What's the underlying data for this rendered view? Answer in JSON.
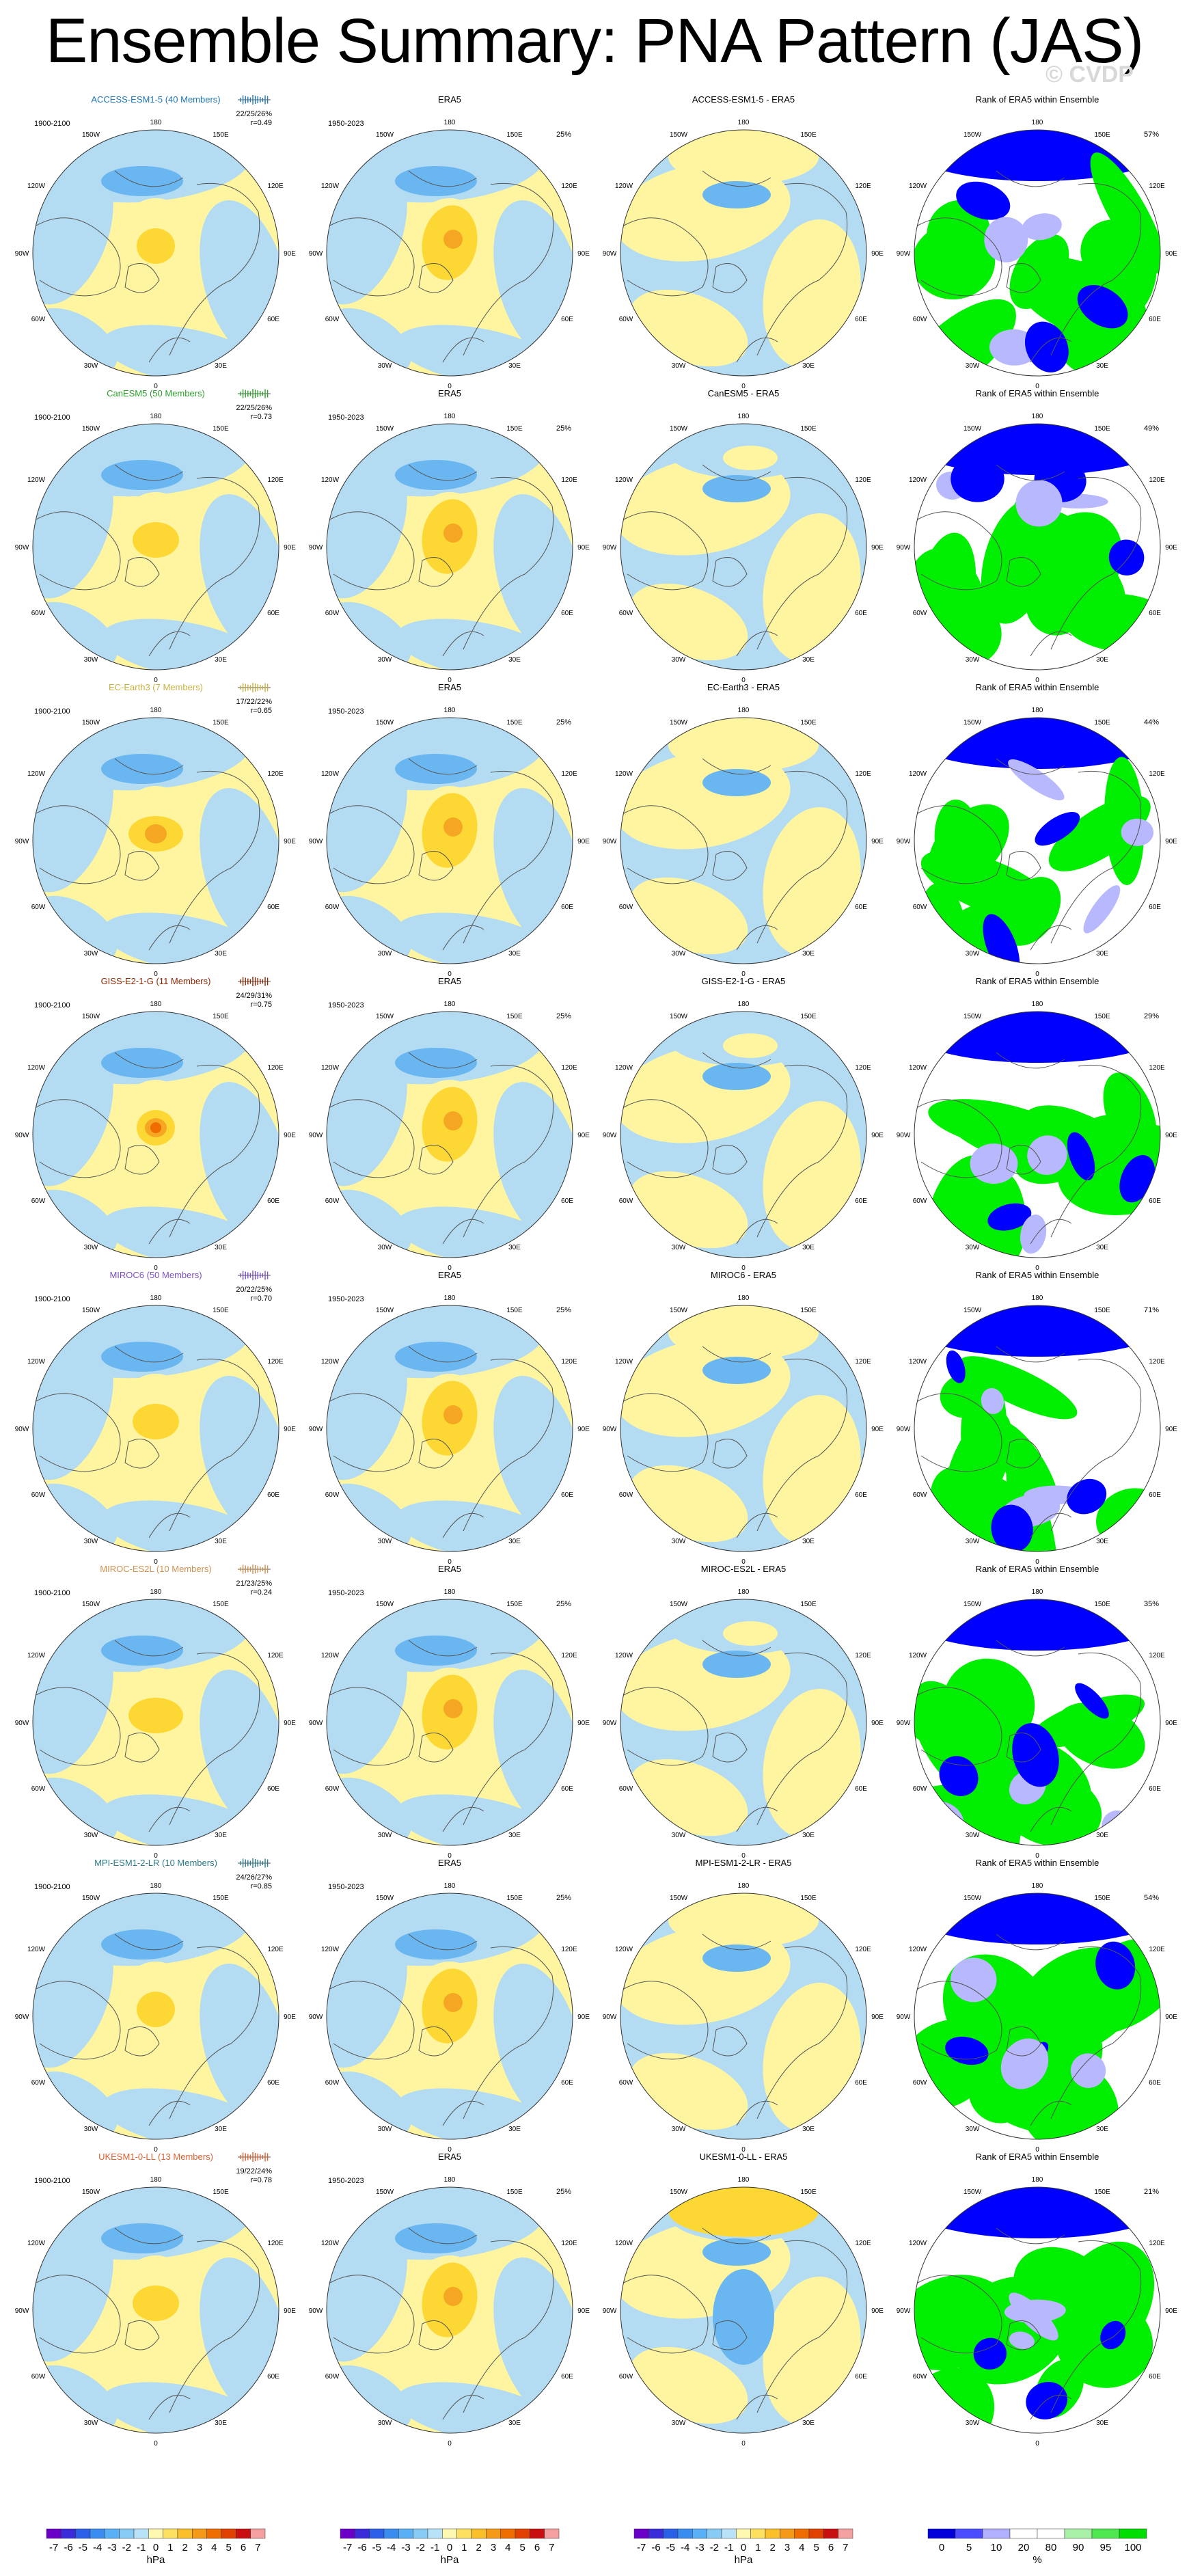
{
  "title": "Ensemble Summary: PNA Pattern (JAS)",
  "watermark": "© CVDP",
  "colors": {
    "pos1": "#fff5a0",
    "pos2": "#fdd835",
    "pos3": "#f5a623",
    "pos4": "#ef6c00",
    "neg1": "#b3dcf2",
    "neg2": "#6ab6f0",
    "neg3": "#2e7cd8",
    "rank_low": "#0000ff",
    "rank_mid_low": "#b8b8ff",
    "rank_mid": "#ffffff",
    "rank_high": "#00ee00"
  },
  "lon_labels": {
    "top": "180",
    "upper_left": "150W",
    "upper_right": "150E",
    "left_upper": "120W",
    "right_upper": "120E",
    "left": "90W",
    "right": "90E",
    "left_lower": "60W",
    "right_lower": "60E",
    "lower_left": "30W",
    "lower_right": "30E",
    "bottom": "0"
  },
  "rows": [
    {
      "model": "ACCESS-ESM1-5 (40 Members)",
      "model_color": "#1f77b4",
      "years": "1900-2100",
      "stats": "22/25/26%",
      "r": "r=0.49",
      "diff_title": "ACCESS-ESM1-5 - ERA5",
      "rank_pct": "57%"
    },
    {
      "model": "CanESM5 (50 Members)",
      "model_color": "#2ca02c",
      "years": "1900-2100",
      "stats": "22/25/26%",
      "r": "r=0.73",
      "diff_title": "CanESM5 - ERA5",
      "rank_pct": "49%"
    },
    {
      "model": "EC-Earth3 (7 Members)",
      "model_color": "#c8b040",
      "years": "1900-2100",
      "stats": "17/22/22%",
      "r": "r=0.65",
      "diff_title": "EC-Earth3 - ERA5",
      "rank_pct": "44%"
    },
    {
      "model": "GISS-E2-1-G (11 Members)",
      "model_color": "#8b2500",
      "years": "1900-2100",
      "stats": "24/29/31%",
      "r": "r=0.75",
      "diff_title": "GISS-E2-1-G - ERA5",
      "rank_pct": "29%"
    },
    {
      "model": "MIROC6 (50 Members)",
      "model_color": "#7b4fc8",
      "years": "1900-2100",
      "stats": "20/22/25%",
      "r": "r=0.70",
      "diff_title": "MIROC6 - ERA5",
      "rank_pct": "71%"
    },
    {
      "model": "MIROC-ES2L (10 Members)",
      "model_color": "#d09050",
      "years": "1900-2100",
      "stats": "21/23/25%",
      "r": "r=0.24",
      "diff_title": "MIROC-ES2L - ERA5",
      "rank_pct": "35%"
    },
    {
      "model": "MPI-ESM1-2-LR (10 Members)",
      "model_color": "#2a7a8a",
      "years": "1900-2100",
      "stats": "24/26/27%",
      "r": "r=0.85",
      "diff_title": "MPI-ESM1-2-LR - ERA5",
      "rank_pct": "54%"
    },
    {
      "model": "UKESM1-0-LL (13 Members)",
      "model_color": "#e06030",
      "years": "1900-2100",
      "stats": "19/22/24%",
      "r": "r=0.78",
      "diff_title": "UKESM1-0-LL - ERA5",
      "rank_pct": "21%"
    }
  ],
  "era5": {
    "title": "ERA5",
    "years": "1950-2023",
    "pct": "25%"
  },
  "rank_title": "Rank of ERA5 within Ensemble",
  "colorbars": [
    {
      "ticks": [
        "-7",
        "-6",
        "-5",
        "-4",
        "-3",
        "-2",
        "-1",
        "0",
        "1",
        "2",
        "3",
        "4",
        "5",
        "6",
        "7"
      ],
      "unit": "hPa",
      "colors": [
        "#6a00c8",
        "#3a2cd8",
        "#2a60e8",
        "#3a8cf0",
        "#5ab0f4",
        "#88ccf6",
        "#b8e2f8",
        "#fff8b0",
        "#fde060",
        "#fbbf2a",
        "#f59a18",
        "#ef6c00",
        "#e04000",
        "#c81010",
        "#f4a0a0"
      ]
    },
    {
      "ticks": [
        "-7",
        "-6",
        "-5",
        "-4",
        "-3",
        "-2",
        "-1",
        "0",
        "1",
        "2",
        "3",
        "4",
        "5",
        "6",
        "7"
      ],
      "unit": "hPa",
      "colors": [
        "#6a00c8",
        "#3a2cd8",
        "#2a60e8",
        "#3a8cf0",
        "#5ab0f4",
        "#88ccf6",
        "#b8e2f8",
        "#fff8b0",
        "#fde060",
        "#fbbf2a",
        "#f59a18",
        "#ef6c00",
        "#e04000",
        "#c81010",
        "#f4a0a0"
      ]
    },
    {
      "ticks": [
        "-7",
        "-6",
        "-5",
        "-4",
        "-3",
        "-2",
        "-1",
        "0",
        "1",
        "2",
        "3",
        "4",
        "5",
        "6",
        "7"
      ],
      "unit": "hPa",
      "colors": [
        "#6a00c8",
        "#3a2cd8",
        "#2a60e8",
        "#3a8cf0",
        "#5ab0f4",
        "#88ccf6",
        "#b8e2f8",
        "#fff8b0",
        "#fde060",
        "#fbbf2a",
        "#f59a18",
        "#ef6c00",
        "#e04000",
        "#c81010",
        "#f4a0a0"
      ]
    },
    {
      "ticks": [
        "0",
        "5",
        "10",
        "20",
        "80",
        "90",
        "95",
        "100"
      ],
      "unit": "%",
      "colors": [
        "#0000d8",
        "#4a4aff",
        "#b0b0ff",
        "#ffffff",
        "#ffffff",
        "#a8f0a8",
        "#50e850",
        "#00dd00"
      ]
    }
  ],
  "chart_data": {
    "type": "heatmap",
    "title": "Ensemble Summary: PNA Pattern (JAS)",
    "columns": [
      "model ensemble",
      "ERA5",
      "model - ERA5",
      "Rank of ERA5 within Ensemble"
    ],
    "models": [
      "ACCESS-ESM1-5",
      "CanESM5",
      "EC-Earth3",
      "GISS-E2-1-G",
      "MIROC6",
      "MIROC-ES2L",
      "MPI-ESM1-2-LR",
      "UKESM1-0-LL"
    ],
    "members": [
      40,
      50,
      7,
      11,
      50,
      10,
      10,
      13
    ],
    "pattern_correlation": [
      0.49,
      0.73,
      0.65,
      0.75,
      0.7,
      0.24,
      0.85,
      0.78
    ],
    "pct_variance_explained": [
      "22/25/26",
      "22/25/26",
      "17/22/22",
      "24/29/31",
      "20/22/25",
      "21/23/25",
      "24/26/27",
      "19/22/24"
    ],
    "era5_pct_variance": 25,
    "rank_pct": [
      57,
      49,
      44,
      29,
      71,
      35,
      54,
      21
    ],
    "unit": "hPa",
    "colorbar_range": [
      -7,
      7
    ],
    "rank_colorbar_ticks": [
      0,
      5,
      10,
      20,
      80,
      90,
      95,
      100
    ]
  }
}
